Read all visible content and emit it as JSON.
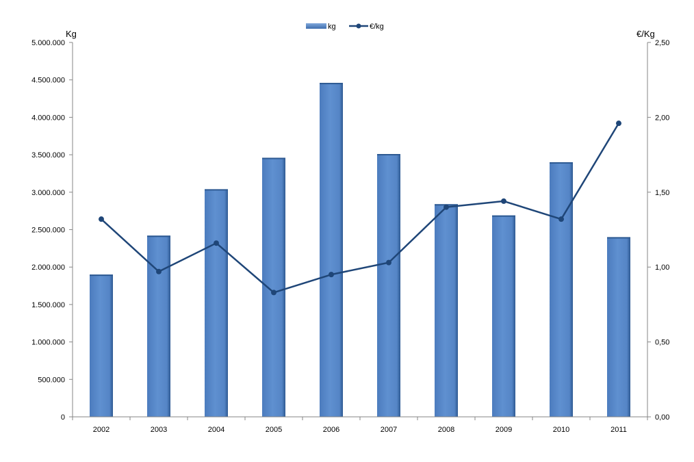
{
  "chart_data": {
    "type": "bar",
    "categories": [
      "2002",
      "2003",
      "2004",
      "2005",
      "2006",
      "2007",
      "2008",
      "2009",
      "2010",
      "2011"
    ],
    "series": [
      {
        "name": "kg",
        "type": "bar",
        "axis": "left",
        "color": "#5B8BCB",
        "values": [
          1900000,
          2420000,
          3040000,
          3460000,
          4460000,
          3510000,
          2840000,
          2690000,
          3400000,
          2400000
        ]
      },
      {
        "name": "€/kg",
        "type": "line",
        "axis": "right",
        "color": "#1F4678",
        "values": [
          1.32,
          0.97,
          1.16,
          0.83,
          0.95,
          1.03,
          1.4,
          1.44,
          1.32,
          1.96
        ]
      }
    ],
    "ylabel_left": "Kg",
    "ylabel_right": "€/Kg",
    "ylim_left": [
      0,
      5000000
    ],
    "ylim_right": [
      0,
      2.5
    ],
    "yticks_left": [
      "0",
      "500.000",
      "1.000.000",
      "1.500.000",
      "2.000.000",
      "2.500.000",
      "3.000.000",
      "3.500.000",
      "4.000.000",
      "4.500.000",
      "5.000.000"
    ],
    "yticks_right": [
      "0,00",
      "0,50",
      "1,00",
      "1,50",
      "2,00",
      "2,50"
    ],
    "legend_position": "top-center",
    "grid": false
  }
}
